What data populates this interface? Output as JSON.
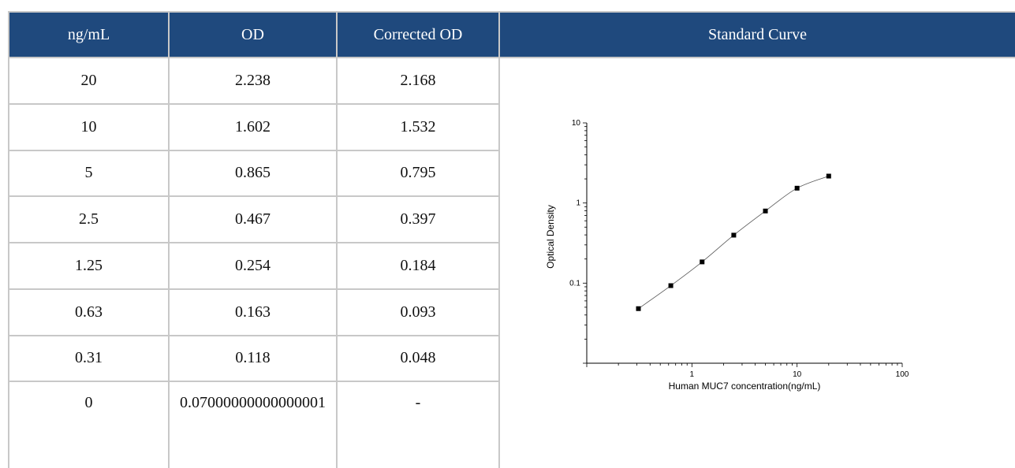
{
  "table": {
    "headers": [
      "ng/mL",
      "OD",
      "Corrected OD",
      "Standard Curve"
    ],
    "rows": [
      {
        "conc": "20",
        "od": "2.238",
        "corrected": "2.168"
      },
      {
        "conc": "10",
        "od": "1.602",
        "corrected": "1.532"
      },
      {
        "conc": "5",
        "od": "0.865",
        "corrected": "0.795"
      },
      {
        "conc": "2.5",
        "od": "0.467",
        "corrected": "0.397"
      },
      {
        "conc": "1.25",
        "od": "0.254",
        "corrected": "0.184"
      },
      {
        "conc": "0.63",
        "od": "0.163",
        "corrected": "0.093"
      },
      {
        "conc": "0.31",
        "od": "0.118",
        "corrected": "0.048"
      },
      {
        "conc": "0",
        "od": "0.07000000000000001",
        "corrected": "-"
      }
    ]
  },
  "chart_data": {
    "type": "scatter",
    "xlabel": "Human MUC7 concentration(ng/mL)",
    "ylabel": "Optical Density",
    "x_scale": "log",
    "y_scale": "log",
    "xlim": [
      0.1,
      100
    ],
    "ylim": [
      0.01,
      10
    ],
    "x_ticks": [
      1,
      10,
      100
    ],
    "x_tick_labels": [
      "1",
      "10",
      "100"
    ],
    "y_ticks": [
      0.1,
      1,
      10
    ],
    "y_tick_labels": [
      "0.1",
      "1",
      "10"
    ],
    "points": [
      {
        "x": 20,
        "y": 2.168
      },
      {
        "x": 10,
        "y": 1.532
      },
      {
        "x": 5,
        "y": 0.795
      },
      {
        "x": 2.5,
        "y": 0.397
      },
      {
        "x": 1.25,
        "y": 0.184
      },
      {
        "x": 0.63,
        "y": 0.093
      },
      {
        "x": 0.31,
        "y": 0.048
      }
    ],
    "fit_curve": true,
    "grid": false,
    "colors": {
      "points": "#000000",
      "curve": "#555555",
      "header_bg": "#1f497d"
    }
  }
}
